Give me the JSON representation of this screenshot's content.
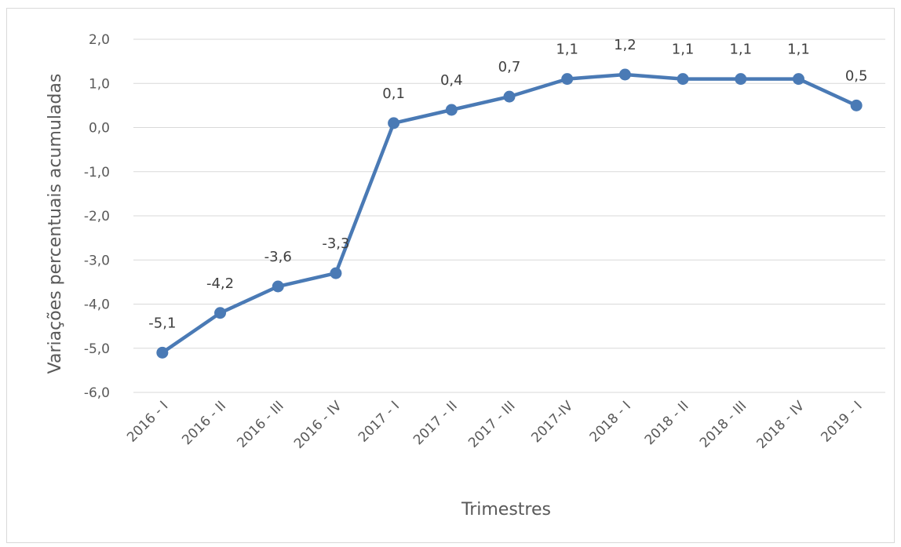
{
  "chart_data": {
    "type": "line",
    "title": "",
    "xlabel": "Trimestres",
    "ylabel": "Variações percentuais acumuladas",
    "categories": [
      "2016 - I",
      "2016 - II",
      "2016 - III",
      "2016 - IV",
      "2017 - I",
      "2017 - II",
      "2017 - III",
      "2017-IV",
      "2018 - I",
      "2018 - II",
      "2018 - III",
      "2018 - IV",
      "2019 - I"
    ],
    "series": [
      {
        "values": [
          -5.1,
          -4.2,
          -3.6,
          -3.3,
          0.1,
          0.4,
          0.7,
          1.1,
          1.2,
          1.1,
          1.1,
          1.1,
          0.5
        ],
        "data_labels": [
          "-5,1",
          "-4,2",
          "-3,6",
          "-3,3",
          "0,1",
          "0,4",
          "0,7",
          "1,1",
          "1,2",
          "1,1",
          "1,1",
          "1,1",
          "0,5"
        ],
        "color": "#4a7ab5"
      }
    ],
    "ylim": [
      -6,
      2
    ],
    "yticks": [
      2,
      1,
      0,
      -1,
      -2,
      -3,
      -4,
      -5,
      -6
    ],
    "ytick_labels": [
      "2,0",
      "1,0",
      "0,0",
      "-1,0",
      "-2,0",
      "-3,0",
      "-4,0",
      "-5,0",
      "-6,0"
    ],
    "grid": true,
    "legend": "none",
    "colors": {
      "series": "#4a7ab5",
      "grid": "#d9d9d9",
      "text": "#595959"
    }
  }
}
